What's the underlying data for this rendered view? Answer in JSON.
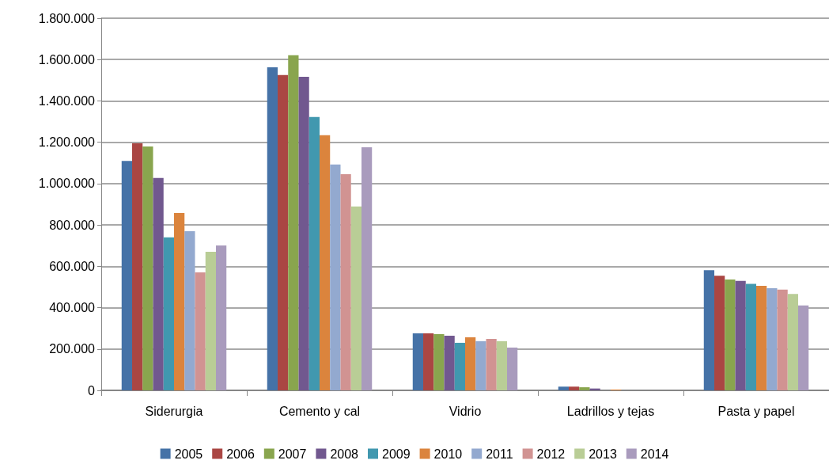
{
  "chart_data": {
    "type": "bar",
    "categories": [
      "Siderurgia",
      "Cemento y cal",
      "Vidrio",
      "Ladrillos y tejas",
      "Pasta y papel"
    ],
    "series": [
      {
        "name": "2005",
        "color": "#4572a7",
        "values": [
          1110000,
          1563000,
          276000,
          18000,
          581000
        ]
      },
      {
        "name": "2006",
        "color": "#aa4643",
        "values": [
          1195000,
          1525000,
          276000,
          18000,
          554000
        ]
      },
      {
        "name": "2007",
        "color": "#89a54e",
        "values": [
          1180000,
          1621000,
          272000,
          15000,
          536000
        ]
      },
      {
        "name": "2008",
        "color": "#71588f",
        "values": [
          1027000,
          1517000,
          264000,
          9000,
          529000
        ]
      },
      {
        "name": "2009",
        "color": "#4198af",
        "values": [
          740000,
          1322000,
          230000,
          0,
          515000
        ]
      },
      {
        "name": "2010",
        "color": "#db843d",
        "values": [
          858000,
          1234000,
          257000,
          4000,
          506000
        ]
      },
      {
        "name": "2011",
        "color": "#93a9cf",
        "values": [
          770000,
          1092000,
          238000,
          0,
          494000
        ]
      },
      {
        "name": "2012",
        "color": "#d19392",
        "values": [
          571000,
          1046000,
          249000,
          0,
          487000
        ]
      },
      {
        "name": "2013",
        "color": "#b9cd96",
        "values": [
          670000,
          889000,
          238000,
          0,
          466000
        ]
      },
      {
        "name": "2014",
        "color": "#a99bbd",
        "values": [
          701000,
          1176000,
          207000,
          0,
          411000
        ]
      }
    ],
    "ylim": [
      0,
      1800000
    ],
    "yticks": [
      0,
      {
        "value": 200000,
        "label": "200.000"
      },
      {
        "value": 400000,
        "label": "400.000"
      },
      {
        "value": 600000,
        "label": "600.000"
      },
      {
        "value": 800000,
        "label": "800.000"
      },
      {
        "value": 1000000,
        "label": "1.000.000"
      },
      {
        "value": 1200000,
        "label": "1.200.000"
      },
      {
        "value": 1400000,
        "label": "1.400.000"
      },
      {
        "value": 1600000,
        "label": "1.600.000"
      },
      {
        "value": 1800000,
        "label": "1.800.000"
      }
    ],
    "grid": "y",
    "legend": "bottom"
  }
}
